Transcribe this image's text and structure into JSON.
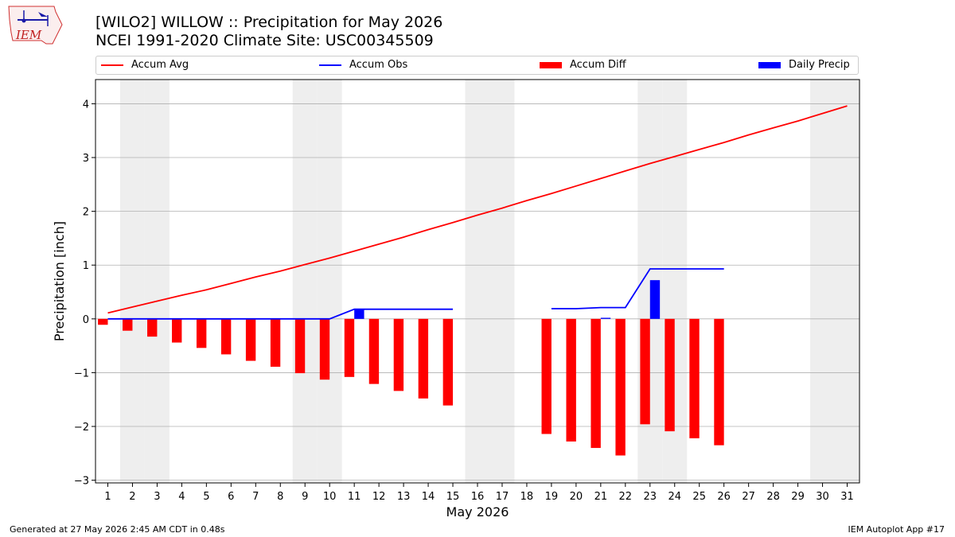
{
  "header": {
    "title_line1": "[WILO2] WILLOW :: Precipitation for May 2026",
    "title_line2": "NCEI 1991-2020 Climate Site: USC00345509"
  },
  "logo": {
    "text": "IEM",
    "icon": "iem-logo"
  },
  "footer": {
    "left": "Generated at 27 May 2026 2:45 AM CDT in 0.48s",
    "right": "IEM Autoplot App #17"
  },
  "colors": {
    "avg": "#ff0000",
    "obs": "#0000ff",
    "diff": "#ff0000",
    "daily": "#0000ff",
    "weekend": "#eeeeee",
    "grid": "#b0b0b0"
  },
  "chart_data": {
    "type": "bar",
    "title": "[WILO2] WILLOW :: Precipitation for May 2026",
    "subtitle": "NCEI 1991-2020 Climate Site: USC00345509",
    "xlabel": "May 2026",
    "ylabel": "Precipitation [inch]",
    "xlim": [
      0.5,
      31.5
    ],
    "ylim": [
      -3.05,
      4.45
    ],
    "x_ticks": [
      1,
      2,
      3,
      4,
      5,
      6,
      7,
      8,
      9,
      10,
      11,
      12,
      13,
      14,
      15,
      16,
      17,
      18,
      19,
      20,
      21,
      22,
      23,
      24,
      25,
      26,
      27,
      28,
      29,
      30,
      31
    ],
    "y_ticks": [
      -3,
      -2,
      -1,
      0,
      1,
      2,
      3,
      4
    ],
    "y_tick_labels": [
      "−3",
      "−2",
      "−1",
      "0",
      "1",
      "2",
      "3",
      "4"
    ],
    "grid": "y",
    "legend_position": "top",
    "weekend_days": [
      2,
      3,
      9,
      10,
      16,
      17,
      23,
      24,
      30,
      31
    ],
    "series": [
      {
        "name": "Accum Avg",
        "kind": "line",
        "x": [
          1,
          2,
          3,
          4,
          5,
          6,
          7,
          8,
          9,
          10,
          11,
          12,
          13,
          14,
          15,
          16,
          17,
          18,
          19,
          20,
          21,
          22,
          23,
          24,
          25,
          26,
          27,
          28,
          29,
          30,
          31
        ],
        "values": [
          0.11,
          0.22,
          0.33,
          0.44,
          0.54,
          0.66,
          0.78,
          0.89,
          1.01,
          1.13,
          1.26,
          1.39,
          1.52,
          1.66,
          1.79,
          1.93,
          2.06,
          2.2,
          2.33,
          2.47,
          2.61,
          2.75,
          2.89,
          3.02,
          3.15,
          3.28,
          3.42,
          3.55,
          3.68,
          3.82,
          3.96
        ]
      },
      {
        "name": "Accum Obs",
        "kind": "line",
        "x": [
          1,
          2,
          3,
          4,
          5,
          6,
          7,
          8,
          9,
          10,
          11,
          12,
          13,
          14,
          15,
          16,
          17,
          18,
          19,
          20,
          21,
          22,
          23,
          24,
          25,
          26
        ],
        "values": [
          0,
          0,
          0,
          0,
          0,
          0,
          0,
          0,
          0,
          0,
          0.18,
          0.18,
          0.18,
          0.18,
          0.18,
          null,
          null,
          null,
          0.19,
          0.19,
          0.21,
          0.21,
          0.93,
          0.93,
          0.93,
          0.93
        ]
      },
      {
        "name": "Accum Diff",
        "kind": "bar",
        "x": [
          1,
          2,
          3,
          4,
          5,
          6,
          7,
          8,
          9,
          10,
          11,
          12,
          13,
          14,
          15,
          19,
          20,
          21,
          22,
          23,
          24,
          25,
          26
        ],
        "values": [
          -0.11,
          -0.22,
          -0.33,
          -0.44,
          -0.54,
          -0.66,
          -0.78,
          -0.89,
          -1.01,
          -1.13,
          -1.08,
          -1.21,
          -1.34,
          -1.48,
          -1.61,
          -2.14,
          -2.28,
          -2.4,
          -2.54,
          -1.96,
          -2.09,
          -2.22,
          -2.35
        ]
      },
      {
        "name": "Daily Precip",
        "kind": "bar",
        "x": [
          11,
          21,
          23
        ],
        "values": [
          0.18,
          0.02,
          0.72
        ]
      }
    ]
  }
}
